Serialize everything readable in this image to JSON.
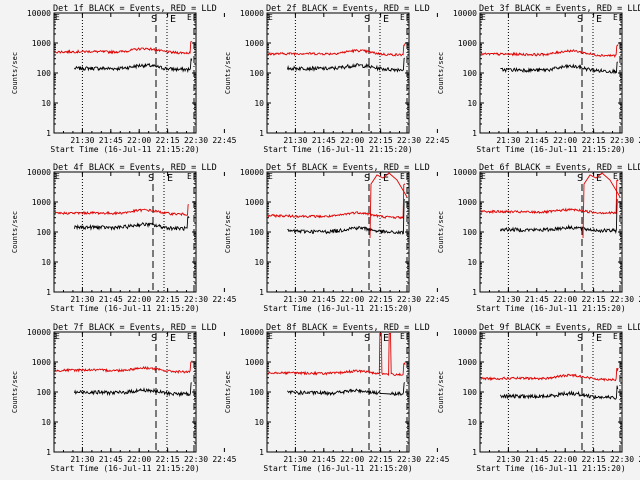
{
  "chart_data": [
    {
      "type": "line",
      "title": "Det 1f BLACK = Events, RED = LLD",
      "shift": 0,
      "pre": [
        140,
        145,
        135,
        130
      ],
      "bump": 0.35,
      "ratio": 3.6,
      "spike": false,
      "lld_top": false,
      "gap": false
    },
    {
      "type": "line",
      "title": "Det 2f BLACK = Events, RED = LLD",
      "shift": 0,
      "pre": [
        140,
        145,
        135,
        130
      ],
      "bump": 0.35,
      "ratio": 3.1,
      "spike": false,
      "lld_top": false,
      "gap": false
    },
    {
      "type": "line",
      "title": "Det 3f BLACK = Events, RED = LLD",
      "shift": 0,
      "pre": [
        130,
        128,
        120,
        115
      ],
      "bump": 0.4,
      "ratio": 3.3,
      "spike": false,
      "lld_top": false,
      "gap": false
    },
    {
      "type": "line",
      "title": "Det 4f BLACK = Events, RED = LLD",
      "shift": -3,
      "pre": [
        140,
        145,
        135,
        130
      ],
      "bump": 0.35,
      "ratio": 3.0,
      "spike": false,
      "lld_top": false,
      "gap": false
    },
    {
      "type": "line",
      "title": "Det 5f BLACK = Events, RED = LLD",
      "shift": 0,
      "pre": [
        110,
        105,
        100,
        95
      ],
      "bump": 0.4,
      "ratio": 3.2,
      "spike": true,
      "lld_top": true,
      "gap": false
    },
    {
      "type": "line",
      "title": "Det 6f BLACK = Events, RED = LLD",
      "shift": 0,
      "pre": [
        125,
        120,
        115,
        110
      ],
      "bump": 0.25,
      "ratio": 3.9,
      "spike": true,
      "lld_top": true,
      "gap": false
    },
    {
      "type": "line",
      "title": "Det 7f BLACK = Events, RED = LLD",
      "shift": 0,
      "pre": [
        95,
        100,
        90,
        85
      ],
      "bump": 0.3,
      "ratio": 5.5,
      "spike": false,
      "lld_top": false,
      "gap": false
    },
    {
      "type": "line",
      "title": "Det 8f BLACK = Events, RED = LLD",
      "shift": 0,
      "pre": [
        100,
        95,
        90,
        85
      ],
      "bump": 0.25,
      "ratio": 4.5,
      "spike": false,
      "lld_top": false,
      "gap": true
    },
    {
      "type": "line",
      "title": "Det 9f BLACK = Events, RED = LLD",
      "shift": 0,
      "pre": [
        70,
        72,
        68,
        65
      ],
      "bump": 0.35,
      "ratio": 4.0,
      "spike": false,
      "lld_top": false,
      "gap": false
    }
  ],
  "axes": {
    "xlabel": "Start Time (16-Jul-11 21:15:20)",
    "ylabel": "Counts/sec",
    "xticks": [
      "21:30",
      "21:45",
      "22:00",
      "22:15",
      "22:30",
      "22:45"
    ],
    "yticks": [
      "1",
      "10",
      "100",
      "1000",
      "10000"
    ],
    "xlim_minutes": [
      0,
      75
    ],
    "ylim": [
      1,
      10000
    ]
  },
  "markers": {
    "start": "S",
    "end": "E"
  },
  "colors": {
    "events": "#000000",
    "lld": "#e00000",
    "axes": "#000000",
    "background": "#f3f3f3"
  }
}
